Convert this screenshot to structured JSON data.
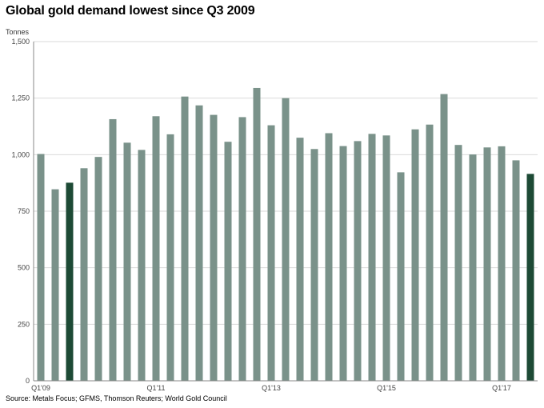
{
  "title": "Global gold demand lowest since Q3 2009",
  "y_unit": "Tonnes",
  "source": "Source: Metals Focus; GFMS, Thomson Reuters; World Gold Council",
  "colors": {
    "bar": "#7a928a",
    "highlight": "#1d4a35",
    "grid": "#d9d9d9",
    "axis": "#888888"
  },
  "chart_data": {
    "type": "bar",
    "title": "Global gold demand lowest since Q3 2009",
    "ylabel": "Tonnes",
    "xlabel": "",
    "ylim": [
      0,
      1500
    ],
    "y_ticks": [
      0,
      250,
      500,
      750,
      1000,
      1250,
      1500
    ],
    "y_tick_labels": [
      "0",
      "250",
      "500",
      "750",
      "1,000",
      "1,250",
      "1,500"
    ],
    "x_tick_labels": [
      {
        "index": 0,
        "label": "Q1'09"
      },
      {
        "index": 8,
        "label": "Q1'11"
      },
      {
        "index": 16,
        "label": "Q1'13"
      },
      {
        "index": 24,
        "label": "Q1'15"
      },
      {
        "index": 32,
        "label": "Q1'17"
      }
    ],
    "grid": true,
    "highlight_indices": [
      2,
      34
    ],
    "categories": [
      "Q1'09",
      "Q2'09",
      "Q3'09",
      "Q4'09",
      "Q1'10",
      "Q2'10",
      "Q3'10",
      "Q4'10",
      "Q1'11",
      "Q2'11",
      "Q3'11",
      "Q4'11",
      "Q1'12",
      "Q2'12",
      "Q3'12",
      "Q4'12",
      "Q1'13",
      "Q2'13",
      "Q3'13",
      "Q4'13",
      "Q1'14",
      "Q2'14",
      "Q3'14",
      "Q4'14",
      "Q1'15",
      "Q2'15",
      "Q3'15",
      "Q4'15",
      "Q1'16",
      "Q2'16",
      "Q3'16",
      "Q4'16",
      "Q1'17",
      "Q2'17",
      "Q3'17"
    ],
    "values": [
      1003,
      847,
      876,
      940,
      990,
      1157,
      1053,
      1021,
      1170,
      1090,
      1257,
      1218,
      1176,
      1057,
      1166,
      1295,
      1130,
      1250,
      1075,
      1025,
      1095,
      1038,
      1060,
      1092,
      1085,
      922,
      1112,
      1133,
      1268,
      1043,
      1001,
      1032,
      1037,
      975,
      915
    ]
  }
}
